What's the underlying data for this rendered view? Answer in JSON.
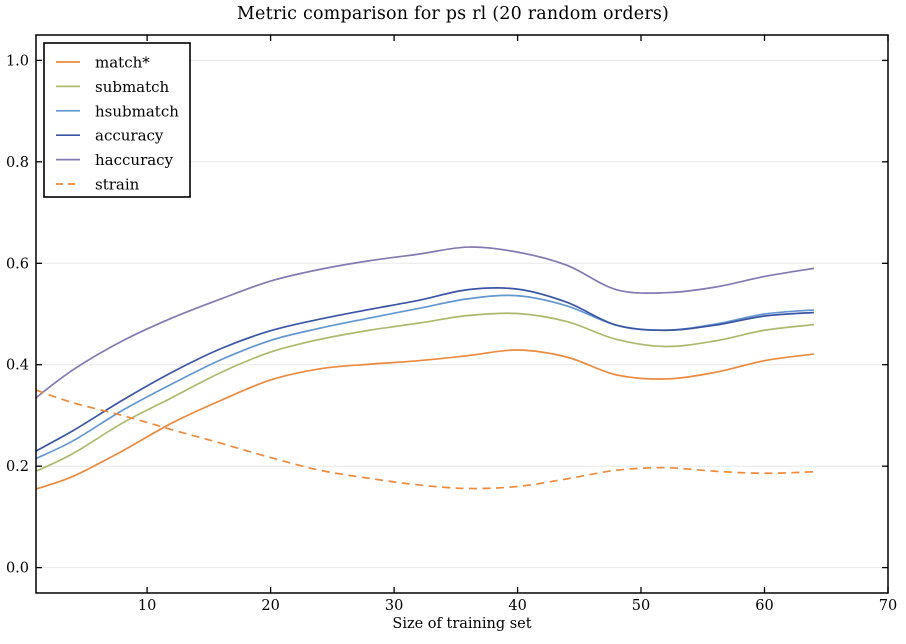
{
  "chart_data": {
    "type": "line",
    "title": "Metric comparison for ps rl (20 random orders)",
    "xlabel": "Size of training set",
    "ylabel": "",
    "xlim": [
      1,
      70
    ],
    "ylim": [
      -0.05,
      1.05
    ],
    "x_ticks": [
      10,
      20,
      30,
      40,
      50,
      60,
      70
    ],
    "y_ticks": [
      0.0,
      0.2,
      0.4,
      0.6,
      0.8,
      1.0
    ],
    "y_tick_labels": [
      "0.0",
      "0.2",
      "0.4",
      "0.6",
      "0.8",
      "1.0"
    ],
    "grid": "horizontal",
    "grid_color": "#e8e8e8",
    "axis_color": "#000000",
    "background_color": "#ffffff",
    "legend_position": "upper-left",
    "x": [
      1,
      4,
      8,
      12,
      16,
      20,
      24,
      28,
      32,
      36,
      40,
      44,
      48,
      52,
      56,
      60,
      64
    ],
    "series": [
      {
        "name": "match*",
        "color": "#ec8a3e",
        "style": "solid",
        "values": [
          0.155,
          0.18,
          0.23,
          0.285,
          0.33,
          0.37,
          0.392,
          0.401,
          0.408,
          0.418,
          0.429,
          0.415,
          0.38,
          0.372,
          0.385,
          0.408,
          0.421
        ]
      },
      {
        "name": "submatch",
        "color": "#acb96e",
        "style": "solid",
        "values": [
          0.19,
          0.225,
          0.285,
          0.335,
          0.385,
          0.425,
          0.45,
          0.468,
          0.482,
          0.497,
          0.501,
          0.485,
          0.45,
          0.436,
          0.447,
          0.468,
          0.479
        ]
      },
      {
        "name": "hsubmatch",
        "color": "#6397d1",
        "style": "solid",
        "values": [
          0.215,
          0.25,
          0.31,
          0.362,
          0.41,
          0.448,
          0.472,
          0.492,
          0.511,
          0.53,
          0.536,
          0.516,
          0.478,
          0.468,
          0.48,
          0.5,
          0.508
        ]
      },
      {
        "name": "accuracy",
        "color": "#3b55a5",
        "style": "solid",
        "values": [
          0.23,
          0.27,
          0.33,
          0.385,
          0.432,
          0.467,
          0.49,
          0.509,
          0.527,
          0.548,
          0.549,
          0.523,
          0.478,
          0.468,
          0.478,
          0.496,
          0.503
        ]
      },
      {
        "name": "haccuracy",
        "color": "#8579b1",
        "style": "solid",
        "values": [
          0.335,
          0.39,
          0.447,
          0.492,
          0.53,
          0.565,
          0.588,
          0.605,
          0.618,
          0.632,
          0.622,
          0.596,
          0.548,
          0.542,
          0.553,
          0.574,
          0.59
        ]
      },
      {
        "name": "strain",
        "color": "#ec8a3e",
        "style": "dashed",
        "values": [
          0.35,
          0.325,
          0.3,
          0.272,
          0.245,
          0.217,
          0.192,
          0.176,
          0.163,
          0.156,
          0.16,
          0.175,
          0.192,
          0.197,
          0.19,
          0.186,
          0.189
        ]
      }
    ]
  }
}
